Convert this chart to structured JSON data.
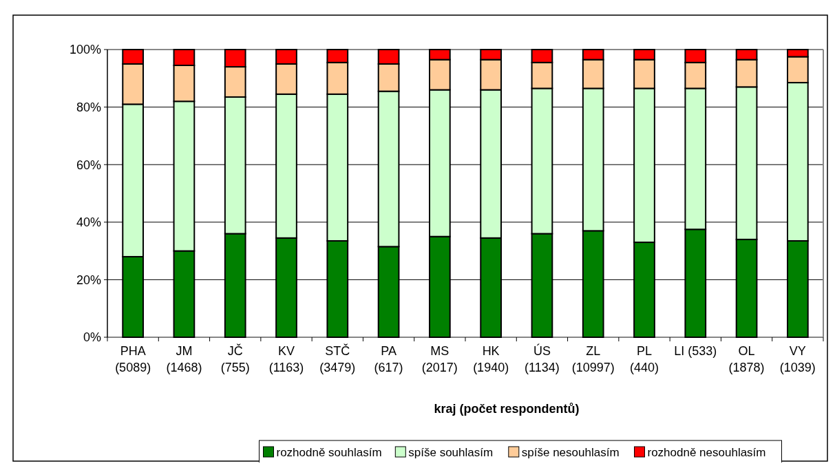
{
  "chart_data": {
    "type": "bar",
    "stacked": true,
    "xlabel": "kraj (počet respondentů)",
    "categories": [
      "PHA\n(5089)",
      "JM\n(1468)",
      "JČ\n(755)",
      "KV\n(1163)",
      "STČ\n(3479)",
      "PA\n(617)",
      "MS\n(2017)",
      "HK\n(1940)",
      "ÚS\n(1134)",
      "ZL\n(10997)",
      "PL\n(440)",
      "LI (533)",
      "OL\n(1878)",
      "VY\n(1039)"
    ],
    "series": [
      {
        "name": "rozhodně souhlasím",
        "color": "#008000",
        "values": [
          28,
          30,
          36,
          34.5,
          33.5,
          31.5,
          35,
          34.5,
          36,
          37,
          33,
          37.5,
          34,
          33.5
        ]
      },
      {
        "name": "spíše souhlasím",
        "color": "#ccffcc",
        "values": [
          53,
          52,
          47.5,
          50,
          51,
          54,
          51,
          51.5,
          50.5,
          49.5,
          53.5,
          49,
          53,
          55
        ]
      },
      {
        "name": "spíše nesouhlasím",
        "color": "#ffcc99",
        "values": [
          14,
          12.5,
          10.5,
          10.5,
          11,
          9.5,
          10.5,
          10.5,
          9,
          10,
          10,
          9,
          9.5,
          9
        ]
      },
      {
        "name": "rozhodně nesouhlasím",
        "color": "#ff0000",
        "values": [
          5,
          5.5,
          6,
          5,
          4.5,
          5,
          3.5,
          3.5,
          4.5,
          3.5,
          3.5,
          4.5,
          3.5,
          2.5
        ]
      }
    ],
    "ylim": [
      0,
      100
    ],
    "yticks": [
      {
        "value": 0,
        "label": "0%"
      },
      {
        "value": 20,
        "label": "20%"
      },
      {
        "value": 40,
        "label": "40%"
      },
      {
        "value": 60,
        "label": "60%"
      },
      {
        "value": 80,
        "label": "80%"
      },
      {
        "value": 100,
        "label": "100%"
      }
    ],
    "grid": "y",
    "legend": "bottom"
  }
}
